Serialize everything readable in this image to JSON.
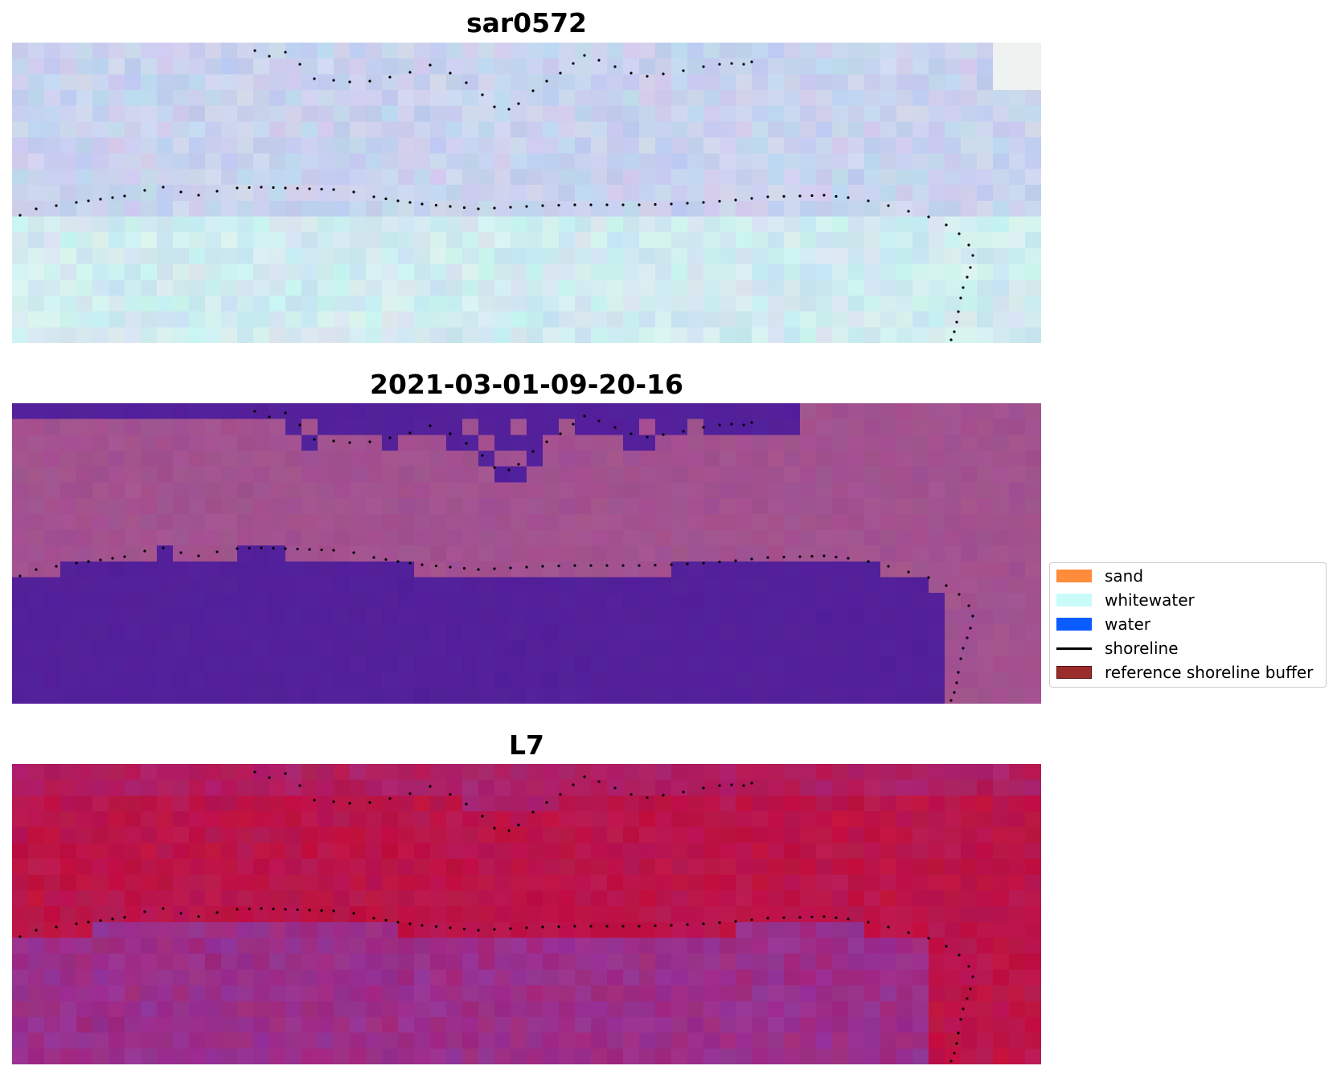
{
  "panels": [
    {
      "title": "sar0572",
      "style": "sar"
    },
    {
      "title": "2021-03-01-09-20-16",
      "style": "class"
    },
    {
      "title": "L7",
      "style": "ndwi"
    }
  ],
  "legend": {
    "items": [
      {
        "label": "sand",
        "kind": "patch",
        "color": "#ff8c3a",
        "edge": "#ff8c3a"
      },
      {
        "label": "whitewater",
        "kind": "patch",
        "color": "#c9fbfb",
        "edge": "#c9fbfb"
      },
      {
        "label": "water",
        "kind": "patch",
        "color": "#0a5cff",
        "edge": "#0a5cff"
      },
      {
        "label": "shoreline",
        "kind": "line",
        "color": "#000000",
        "edge": "#000000"
      },
      {
        "label": "reference shoreline buffer",
        "kind": "patch",
        "color": "#9b2c2c",
        "edge": "#5a0f0f"
      }
    ]
  },
  "colors": {
    "class_water": "#53209a",
    "class_land": "#a2528f",
    "sar_base": "#c8d4ef",
    "ndwi_high": "#c0103f",
    "ndwi_low": "#8c3aa6",
    "shoreline_dots": "#000000"
  }
}
